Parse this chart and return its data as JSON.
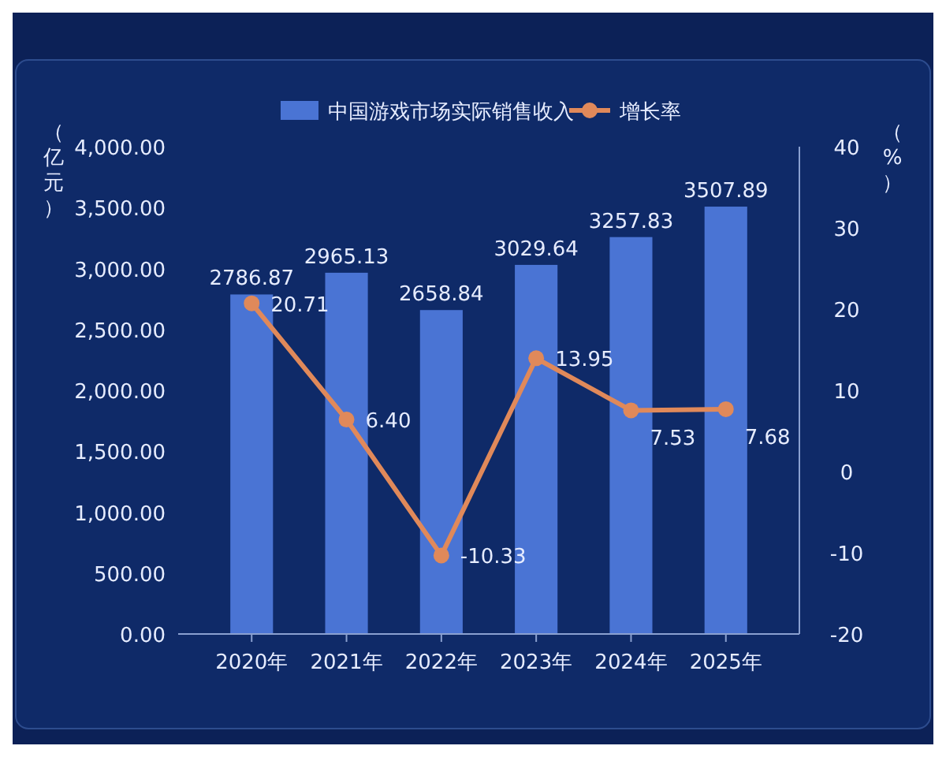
{
  "chart_data": {
    "type": "bar",
    "categories": [
      "2020年",
      "2021年",
      "2022年",
      "2023年",
      "2024年",
      "2025年"
    ],
    "series": [
      {
        "name": "中国游戏市场实际销售收入",
        "color": "#4a74d4",
        "values": [
          2786.87,
          2965.13,
          2658.84,
          3029.64,
          3257.83,
          3507.89
        ]
      },
      {
        "name": "增长率",
        "type": "line",
        "axis": "y2",
        "color": "#e0895a",
        "values": [
          20.71,
          6.4,
          -10.33,
          13.95,
          7.53,
          7.68
        ],
        "value_labels": [
          "20.71",
          "6.40",
          "-10.33",
          "13.95",
          "7.53",
          "7.68"
        ]
      }
    ],
    "ylabel": "（亿元）",
    "y2label": "（%）",
    "ylim": [
      0,
      4000
    ],
    "yticks": [
      {
        "value": 0,
        "label": "0.00"
      },
      {
        "value": 500,
        "label": "500.00"
      },
      {
        "value": 1000,
        "label": "1,000.00"
      },
      {
        "value": 1500,
        "label": "1,500.00"
      },
      {
        "value": 2000,
        "label": "2,000.00"
      },
      {
        "value": 2500,
        "label": "2,500.00"
      },
      {
        "value": 3000,
        "label": "3,000.00"
      },
      {
        "value": 3500,
        "label": "3,500.00"
      },
      {
        "value": 4000,
        "label": "4,000.00"
      }
    ],
    "y2lim": [
      -20,
      40
    ],
    "y2ticks": [
      -20,
      -10,
      0,
      10,
      20,
      30,
      40
    ],
    "data_labels": true,
    "legend": "top",
    "grid": false,
    "marker": "circle",
    "line_style": "solid"
  }
}
